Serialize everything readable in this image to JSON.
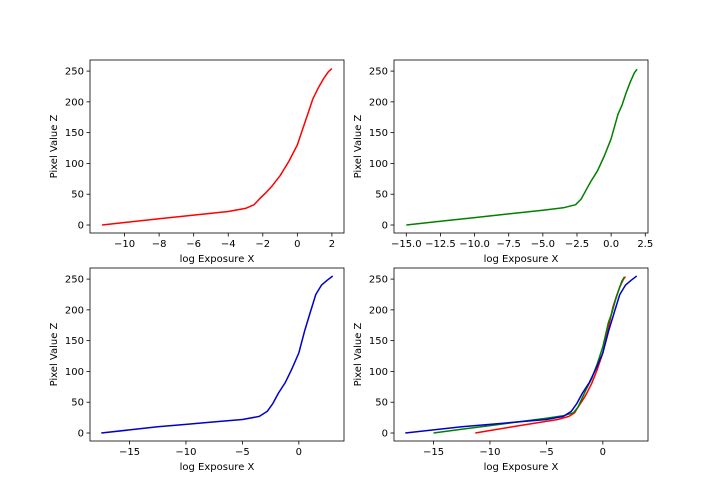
{
  "chart_data": [
    {
      "type": "line",
      "xlabel": "log Exposure X",
      "ylabel": "Pixel Value Z",
      "xlim": [
        -12.0,
        2.7
      ],
      "ylim": [
        -13,
        268
      ],
      "xticks": [
        -10,
        -8,
        -6,
        -4,
        -2,
        0,
        2
      ],
      "xtick_labels": [
        "−10",
        "−8",
        "−6",
        "−4",
        "−2",
        "0",
        "2"
      ],
      "yticks": [
        0,
        50,
        100,
        150,
        200,
        250
      ],
      "ytick_labels": [
        "0",
        "50",
        "100",
        "150",
        "200",
        "250"
      ],
      "series": [
        {
          "color": "#ff0000",
          "x": [
            -11.3,
            -10,
            -8,
            -6,
            -4,
            -3,
            -2.5,
            -2.2,
            -1.8,
            -1.5,
            -1.0,
            -0.5,
            0,
            0.3,
            0.6,
            0.9,
            1.2,
            1.5,
            1.8,
            2.0
          ],
          "y": [
            0,
            4,
            10,
            16,
            22,
            27,
            33,
            42,
            53,
            62,
            80,
            103,
            130,
            155,
            180,
            205,
            222,
            237,
            249,
            254
          ]
        }
      ]
    },
    {
      "type": "line",
      "xlabel": "log Exposure X",
      "ylabel": "Pixel Value Z",
      "xlim": [
        -15.9,
        2.7
      ],
      "ylim": [
        -13,
        268
      ],
      "xticks": [
        -15,
        -12.5,
        -10,
        -7.5,
        -5,
        -2.5,
        0,
        2.5
      ],
      "xtick_labels": [
        "−15.0",
        "−12.5",
        "−10.0",
        "−7.5",
        "−5.0",
        "−2.5",
        "0.0",
        "2.5"
      ],
      "yticks": [
        0,
        50,
        100,
        150,
        200,
        250
      ],
      "ytick_labels": [
        "0",
        "50",
        "100",
        "150",
        "200",
        "250"
      ],
      "series": [
        {
          "color": "#008000",
          "x": [
            -15.0,
            -12.5,
            -10,
            -7.5,
            -5,
            -3.5,
            -2.6,
            -2.2,
            -1.8,
            -1.5,
            -1.0,
            -0.5,
            0,
            0.5,
            0.8,
            1.1,
            1.4,
            1.7,
            1.9
          ],
          "y": [
            0,
            6,
            12,
            18,
            24,
            28,
            33,
            42,
            58,
            70,
            88,
            112,
            140,
            180,
            195,
            215,
            232,
            247,
            253
          ]
        }
      ]
    },
    {
      "type": "line",
      "xlabel": "log Exposure X",
      "ylabel": "Pixel Value Z",
      "xlim": [
        -18.5,
        4.0
      ],
      "ylim": [
        -13,
        268
      ],
      "xticks": [
        -15,
        -10,
        -5,
        0
      ],
      "xtick_labels": [
        "−15",
        "−10",
        "−5",
        "0"
      ],
      "yticks": [
        0,
        50,
        100,
        150,
        200,
        250
      ],
      "ytick_labels": [
        "0",
        "50",
        "100",
        "150",
        "200",
        "250"
      ],
      "series": [
        {
          "color": "#0000cc",
          "x": [
            -17.5,
            -15,
            -12.5,
            -10,
            -7.5,
            -5,
            -3.5,
            -2.8,
            -2.3,
            -1.8,
            -1.2,
            -0.6,
            0,
            0.5,
            1.0,
            1.5,
            2.0,
            2.5,
            3.0
          ],
          "y": [
            0,
            5,
            10,
            14,
            18,
            22,
            27,
            35,
            48,
            65,
            82,
            105,
            130,
            165,
            195,
            225,
            240,
            248,
            255
          ]
        }
      ]
    },
    {
      "type": "line",
      "xlabel": "log Exposure X",
      "ylabel": "Pixel Value Z",
      "xlim": [
        -18.5,
        4.0
      ],
      "ylim": [
        -13,
        268
      ],
      "xticks": [
        -15,
        -10,
        -5,
        0
      ],
      "xtick_labels": [
        "−15",
        "−10",
        "−5",
        "0"
      ],
      "yticks": [
        0,
        50,
        100,
        150,
        200,
        250
      ],
      "ytick_labels": [
        "0",
        "50",
        "100",
        "150",
        "200",
        "250"
      ],
      "series": [
        {
          "color": "#ff0000",
          "x": [
            -11.3,
            -10,
            -8,
            -6,
            -4,
            -3,
            -2.5,
            -2.2,
            -1.8,
            -1.5,
            -1.0,
            -0.5,
            0,
            0.3,
            0.6,
            0.9,
            1.2,
            1.5,
            1.8,
            2.0
          ],
          "y": [
            0,
            4,
            10,
            16,
            22,
            27,
            33,
            42,
            53,
            62,
            80,
            103,
            130,
            155,
            180,
            205,
            222,
            237,
            249,
            254
          ]
        },
        {
          "color": "#008000",
          "x": [
            -15.0,
            -12.5,
            -10,
            -7.5,
            -5,
            -3.5,
            -2.6,
            -2.2,
            -1.8,
            -1.5,
            -1.0,
            -0.5,
            0,
            0.5,
            0.8,
            1.1,
            1.4,
            1.7,
            1.9
          ],
          "y": [
            0,
            6,
            12,
            18,
            24,
            28,
            33,
            42,
            58,
            70,
            88,
            112,
            140,
            180,
            195,
            215,
            232,
            247,
            253
          ]
        },
        {
          "color": "#0000cc",
          "x": [
            -17.5,
            -15,
            -12.5,
            -10,
            -7.5,
            -5,
            -3.5,
            -2.8,
            -2.3,
            -1.8,
            -1.2,
            -0.6,
            0,
            0.5,
            1.0,
            1.5,
            2.0,
            2.5,
            3.0
          ],
          "y": [
            0,
            5,
            10,
            14,
            18,
            22,
            27,
            35,
            48,
            65,
            82,
            105,
            130,
            165,
            195,
            225,
            240,
            248,
            255
          ]
        }
      ]
    }
  ]
}
